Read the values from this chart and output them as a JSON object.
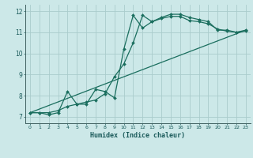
{
  "background_color": "#cce8e8",
  "grid_color": "#aacccc",
  "line_color": "#1a6e5e",
  "xlabel": "Humidex (Indice chaleur)",
  "xlim": [
    -0.5,
    23.5
  ],
  "ylim": [
    6.7,
    12.3
  ],
  "yticks": [
    7,
    8,
    9,
    10,
    11,
    12
  ],
  "xticks": [
    0,
    1,
    2,
    3,
    4,
    5,
    6,
    7,
    8,
    9,
    10,
    11,
    12,
    13,
    14,
    15,
    16,
    17,
    18,
    19,
    20,
    21,
    22,
    23
  ],
  "series": [
    {
      "x": [
        0,
        1,
        2,
        3,
        4,
        5,
        6,
        7,
        8,
        9,
        10,
        11,
        12,
        13,
        14,
        15,
        16,
        17,
        18,
        19,
        20,
        21,
        22,
        23
      ],
      "y": [
        7.2,
        7.2,
        7.1,
        7.2,
        8.2,
        7.6,
        7.6,
        8.3,
        8.2,
        7.9,
        10.2,
        11.8,
        11.2,
        11.5,
        11.7,
        11.85,
        11.85,
        11.7,
        11.6,
        11.5,
        11.1,
        11.1,
        11.0,
        11.1
      ],
      "marker": "D",
      "markersize": 2.0,
      "linewidth": 0.9
    },
    {
      "x": [
        0,
        1,
        2,
        3,
        4,
        5,
        6,
        7,
        8,
        9,
        10,
        11,
        12,
        13,
        14,
        15,
        16,
        17,
        18,
        19,
        20,
        21,
        22,
        23
      ],
      "y": [
        7.2,
        7.2,
        7.2,
        7.3,
        7.5,
        7.6,
        7.7,
        7.8,
        8.1,
        8.9,
        9.5,
        10.5,
        11.8,
        11.5,
        11.65,
        11.75,
        11.75,
        11.55,
        11.5,
        11.4,
        11.15,
        11.05,
        11.0,
        11.05
      ],
      "marker": "D",
      "markersize": 2.0,
      "linewidth": 0.9
    },
    {
      "x": [
        0,
        23
      ],
      "y": [
        7.2,
        11.1
      ],
      "marker": null,
      "markersize": 0,
      "linewidth": 0.9
    }
  ]
}
